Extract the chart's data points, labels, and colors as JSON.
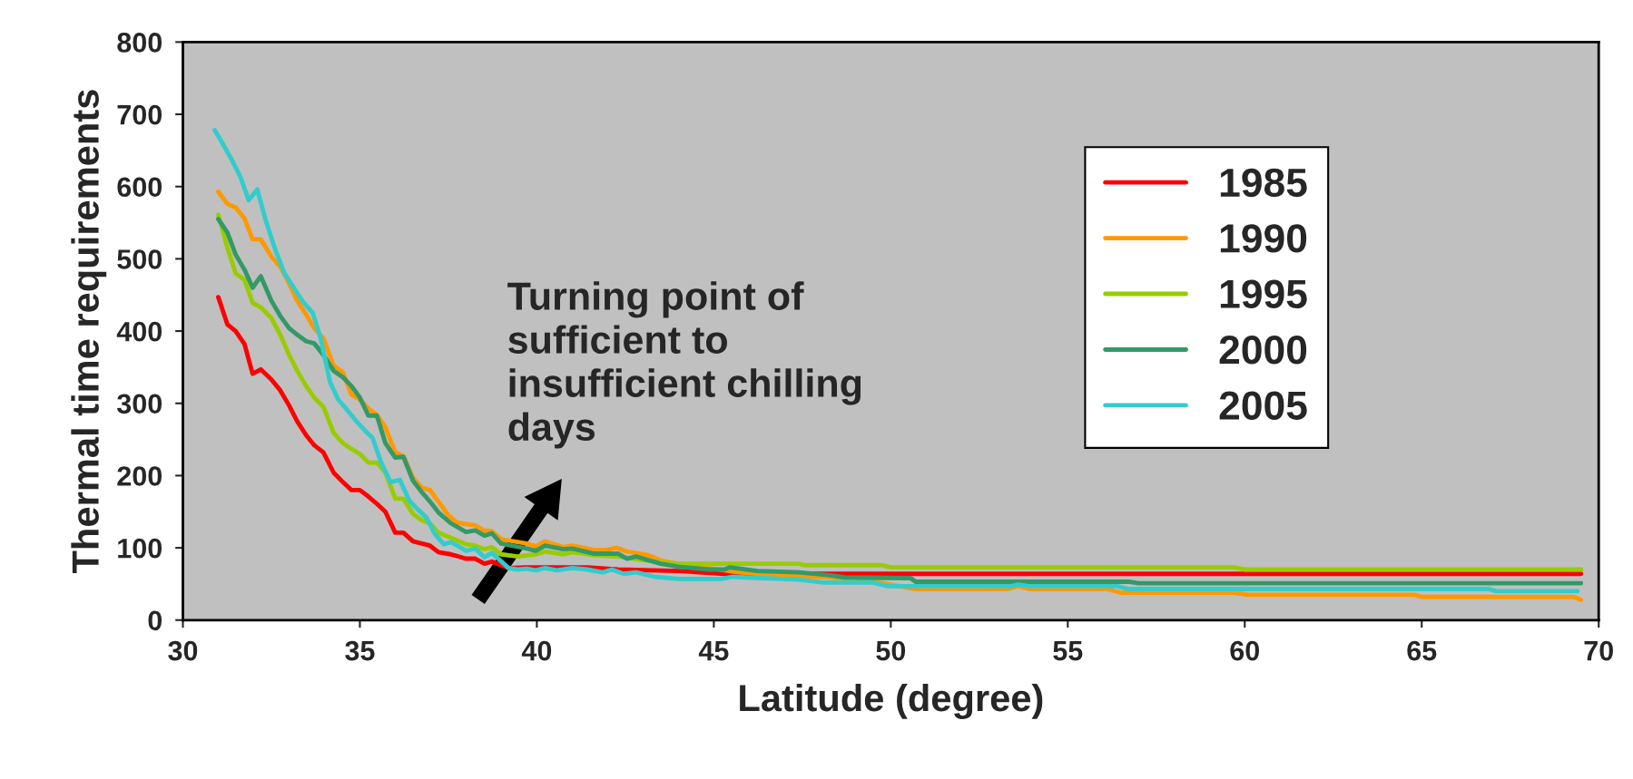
{
  "chart_data": {
    "type": "line",
    "xlabel": "Latitude (degree)",
    "ylabel": "Thermal time requirements",
    "xlim": [
      30,
      70
    ],
    "ylim": [
      0,
      800
    ],
    "xticks": [
      30,
      35,
      40,
      45,
      50,
      55,
      60,
      65,
      70
    ],
    "yticks": [
      0,
      100,
      200,
      300,
      400,
      500,
      600,
      700,
      800
    ],
    "grid": false,
    "legend": "top right",
    "marker": "none",
    "line_style": "solid",
    "annotations": [
      "Turning point of\nsufficient to\ninsufficient chilling\ndays"
    ],
    "series": [
      {
        "name": "1985",
        "color": "#ff0000",
        "x": [
          31.0,
          31.26,
          31.49,
          31.74,
          31.97,
          32.2,
          32.5,
          32.75,
          33.0,
          33.23,
          33.48,
          33.71,
          33.97,
          34.26,
          34.52,
          34.76,
          35.0,
          35.24,
          35.48,
          35.72,
          36.0,
          36.23,
          36.5,
          36.98,
          37.22,
          37.57,
          38.0,
          38.26,
          38.52,
          38.73,
          39.2,
          39.72,
          41.43,
          42.29,
          44.0,
          45.3,
          69.5
        ],
        "values": [
          447,
          409,
          400,
          382,
          341,
          347,
          333,
          318,
          297,
          275,
          256,
          242,
          232,
          204,
          191,
          180,
          180,
          171,
          161,
          150,
          121,
          121,
          109,
          103,
          94,
          91,
          85,
          85,
          78,
          81,
          72,
          73,
          73,
          70,
          68,
          64,
          64
        ]
      },
      {
        "name": "1990",
        "color": "#ff9900",
        "x": [
          31.0,
          31.26,
          31.49,
          31.74,
          31.97,
          32.2,
          32.5,
          32.75,
          33.0,
          33.23,
          33.48,
          33.71,
          33.97,
          34.26,
          34.52,
          34.76,
          35.0,
          35.24,
          35.48,
          35.72,
          36.0,
          36.23,
          36.5,
          36.75,
          36.98,
          37.22,
          37.5,
          37.74,
          38.26,
          38.5,
          38.73,
          38.99,
          39.72,
          39.97,
          40.23,
          40.75,
          41.0,
          41.6,
          41.95,
          42.25,
          42.55,
          43.15,
          43.53,
          44.0,
          44.86,
          45.72,
          46.23,
          47.4,
          48.3,
          49.58,
          50.0,
          50.7,
          53.3,
          53.6,
          53.9,
          56.1,
          56.5,
          59.7,
          60.1,
          64.8,
          65.0,
          69.3,
          69.5
        ],
        "values": [
          593,
          576,
          571,
          556,
          527,
          527,
          503,
          489,
          466,
          442,
          423,
          404,
          390,
          352,
          343,
          312,
          305,
          293,
          284,
          267,
          232,
          227,
          197,
          183,
          180,
          164,
          145,
          135,
          131,
          124,
          123,
          112,
          106,
          102,
          109,
          101,
          103,
          97,
          97,
          100,
          95,
          90,
          82,
          78,
          72,
          66,
          64,
          61,
          59,
          53,
          49,
          43,
          43,
          47,
          43,
          43,
          38,
          38,
          35,
          35,
          32,
          32,
          28
        ]
      },
      {
        "name": "1995",
        "color": "#99cc00",
        "x": [
          31.0,
          31.26,
          31.49,
          31.74,
          31.97,
          32.2,
          32.5,
          32.75,
          33.0,
          33.23,
          33.48,
          33.71,
          33.97,
          34.26,
          34.52,
          34.76,
          35.0,
          35.24,
          35.48,
          35.72,
          36.0,
          36.23,
          36.5,
          36.75,
          36.98,
          37.22,
          37.57,
          38.0,
          38.26,
          38.52,
          38.73,
          38.99,
          39.46,
          39.97,
          40.23,
          40.75,
          41.0,
          41.6,
          42.29,
          42.72,
          43.5,
          44.0,
          47.4,
          47.55,
          49.75,
          50.0,
          59.7,
          60.0,
          69.5
        ],
        "values": [
          561,
          515,
          480,
          471,
          439,
          433,
          418,
          395,
          367,
          345,
          324,
          308,
          295,
          259,
          245,
          237,
          230,
          218,
          218,
          204,
          168,
          168,
          147,
          138,
          134,
          121,
          114,
          105,
          103,
          98,
          101,
          91,
          88,
          91,
          95,
          91,
          94,
          90,
          88,
          85,
          80,
          78,
          78,
          76,
          76,
          73,
          73,
          70,
          70
        ]
      },
      {
        "name": "2000",
        "color": "#339966",
        "x": [
          31.0,
          31.26,
          31.49,
          31.74,
          31.97,
          32.2,
          32.5,
          32.75,
          33.0,
          33.23,
          33.48,
          33.71,
          33.97,
          34.26,
          34.52,
          34.76,
          35.0,
          35.24,
          35.48,
          35.72,
          36.0,
          36.23,
          36.5,
          36.75,
          36.98,
          37.22,
          37.57,
          38.0,
          38.26,
          38.52,
          38.73,
          38.99,
          39.72,
          39.97,
          40.23,
          40.75,
          41.0,
          41.6,
          42.29,
          42.55,
          42.8,
          43.5,
          44.0,
          44.86,
          45.3,
          45.46,
          46.23,
          47.4,
          48.3,
          48.7,
          50.56,
          50.7,
          56.75,
          57.0,
          69.5
        ],
        "values": [
          555,
          536,
          506,
          485,
          460,
          476,
          442,
          421,
          404,
          395,
          386,
          383,
          367,
          345,
          336,
          324,
          308,
          283,
          283,
          245,
          225,
          226,
          193,
          177,
          164,
          149,
          134,
          122,
          124,
          117,
          120,
          106,
          99,
          96,
          103,
          98,
          99,
          92,
          92,
          85,
          88,
          78,
          74,
          70,
          70,
          73,
          68,
          66,
          62,
          59,
          58,
          53,
          53,
          51,
          51
        ]
      },
      {
        "name": "2005",
        "color": "#33cccc",
        "x": [
          30.9,
          31.13,
          31.37,
          31.62,
          31.86,
          32.1,
          32.36,
          32.63,
          32.87,
          33.16,
          33.4,
          33.67,
          33.89,
          34.16,
          34.39,
          34.64,
          34.87,
          35.13,
          35.36,
          35.61,
          35.87,
          36.13,
          36.4,
          36.64,
          36.88,
          37.12,
          37.37,
          37.57,
          38.0,
          38.26,
          38.52,
          38.73,
          39.2,
          39.46,
          39.72,
          39.97,
          40.23,
          40.57,
          41.0,
          41.43,
          41.86,
          42.12,
          42.46,
          42.8,
          43.32,
          44.0,
          45.2,
          45.55,
          45.9,
          47.4,
          48.1,
          49.5,
          49.9,
          53.4,
          53.6,
          53.9,
          56.4,
          56.7,
          66.9,
          67.1,
          69.4
        ],
        "values": [
          678,
          659,
          638,
          614,
          581,
          596,
          550,
          510,
          480,
          458,
          440,
          425,
          390,
          329,
          305,
          291,
          277,
          263,
          252,
          217,
          191,
          194,
          165,
          153,
          142,
          119,
          105,
          108,
          96,
          99,
          87,
          93,
          72,
          70,
          71,
          69,
          72,
          69,
          72,
          70,
          66,
          70,
          64,
          66,
          60,
          57,
          57,
          60,
          59,
          56,
          52,
          52,
          47,
          47,
          49,
          47,
          47,
          43,
          43,
          40,
          40
        ]
      }
    ]
  }
}
